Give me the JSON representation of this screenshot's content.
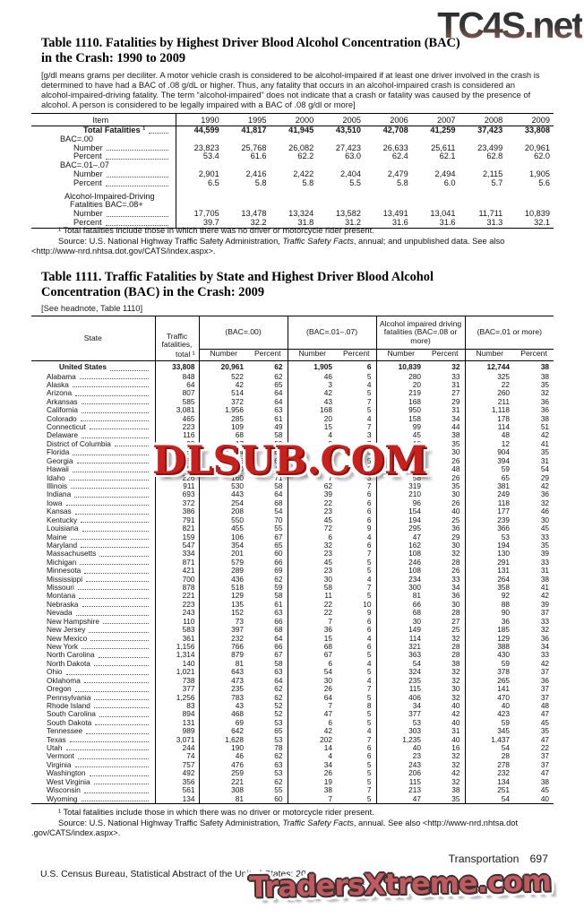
{
  "watermarks": {
    "top_right": "TC4S.net",
    "middle": "DLSUB.COM",
    "bottom": "TradersXtreme.com",
    "middle_color": "#c8201d",
    "bottom_color": "#c2595f"
  },
  "table_1110": {
    "title_line1": "Table 1110. Fatalities by Highest Driver Blood Alcohol Concentration (BAC)",
    "title_line2": "in the Crash: 1990 to 2009",
    "headnote": "[g/dl means grams per deciliter. A motor vehicle crash is considered to be alcohol-impaired if at least one driver involved in the crash is determined to have had a BAC of .08 g/dL or higher. Thus, any fatality that occurs in an alcohol-impaired crash is considered an alcohol-impaired-driving fatality. The term “alcohol-impaired” does not indicate that a crash or fatality was caused by the presence of alcohol. A person is considered to be legally impaired with a BAC of .08 g/dl or more]",
    "columns": [
      "Item",
      "1990",
      "1995",
      "2000",
      "2005",
      "2006",
      "2007",
      "2008",
      "2009"
    ],
    "rows": [
      {
        "label": "Total Fatalities ¹",
        "level": "total",
        "bold": true,
        "leader": true,
        "values": [
          "44,599",
          "41,817",
          "41,945",
          "43,510",
          "42,708",
          "41,259",
          "37,423",
          "33,808"
        ]
      },
      {
        "label": "BAC=.00",
        "level": "group"
      },
      {
        "label": "Number",
        "level": "item",
        "leader": true,
        "values": [
          "23,823",
          "25,768",
          "26,082",
          "27,423",
          "26,633",
          "25,611",
          "23,499",
          "20,961"
        ]
      },
      {
        "label": "Percent",
        "level": "item",
        "leader": true,
        "values": [
          "53.4",
          "61.6",
          "62.2",
          "63.0",
          "62.4",
          "62.1",
          "62.8",
          "62.0"
        ]
      },
      {
        "label": "BAC=.01–.07",
        "level": "group"
      },
      {
        "label": "Number",
        "level": "item",
        "leader": true,
        "values": [
          "2,901",
          "2,416",
          "2,422",
          "2,404",
          "2,479",
          "2,494",
          "2,115",
          "1,905"
        ]
      },
      {
        "label": "Percent",
        "level": "item",
        "leader": true,
        "values": [
          "6.5",
          "5.8",
          "5.8",
          "5.5",
          "5.8",
          "6.0",
          "5.7",
          "5.6"
        ]
      },
      {
        "gap": true
      },
      {
        "label": "Alcohol-Impaired-Driving",
        "label2": "Fatalities BAC=.08+",
        "level": "group2"
      },
      {
        "label": "Number",
        "level": "item",
        "leader": true,
        "values": [
          "17,705",
          "13,478",
          "13,324",
          "13,582",
          "13,491",
          "13,041",
          "11,711",
          "10,839"
        ]
      },
      {
        "label": "Percent",
        "level": "item",
        "leader": true,
        "values": [
          "39.7",
          "32.2",
          "31.8",
          "31.2",
          "31.6",
          "31.6",
          "31.3",
          "32.1"
        ]
      }
    ],
    "footnote": "¹ Total fatalities include those in which there was no driver or motorcycle rider present.",
    "source_prefix": "Source: U.S. National Highway Traffic Safety Administration, ",
    "source_italic": "Traffic Safety Facts",
    "source_suffix": ", annual; and unpublished data. See also",
    "source_line2": "<http://www-nrd.nhtsa.dot.gov/CATS/index.aspx>."
  },
  "table_1111": {
    "title_line1": "Table 1111. Traffic Fatalities by State and Highest Driver Blood Alcohol",
    "title_line2": "Concentration (BAC) in the Crash: 2009",
    "headnote": "[See headnote, Table 1110]",
    "stubhead": "State",
    "total_top": "Traffic fatalities,",
    "total_bottom": "total ¹",
    "groups": [
      "(BAC=.00)",
      "(BAC=.01–.07)",
      "Alcohol impaired driving fatalities (BAC=.08 or more)",
      "(BAC=.01 or more)"
    ],
    "sub": [
      "Number",
      "Percent"
    ],
    "rows": [
      {
        "label": "United States",
        "bold": true,
        "values": [
          "33,808",
          "20,961",
          "62",
          "1,905",
          "6",
          "10,839",
          "32",
          "12,744",
          "38"
        ]
      },
      {
        "label": "Alabama",
        "values": [
          "848",
          "522",
          "62",
          "46",
          "5",
          "280",
          "33",
          "325",
          "38"
        ]
      },
      {
        "label": "Alaska",
        "values": [
          "64",
          "42",
          "65",
          "3",
          "4",
          "20",
          "31",
          "22",
          "35"
        ]
      },
      {
        "label": "Arizona",
        "values": [
          "807",
          "514",
          "64",
          "42",
          "5",
          "219",
          "27",
          "260",
          "32"
        ]
      },
      {
        "label": "Arkansas",
        "values": [
          "585",
          "372",
          "64",
          "43",
          "7",
          "168",
          "29",
          "211",
          "36"
        ]
      },
      {
        "label": "California",
        "values": [
          "3,081",
          "1,956",
          "63",
          "168",
          "5",
          "950",
          "31",
          "1,118",
          "36"
        ]
      },
      {
        "label": "Colorado",
        "values": [
          "465",
          "285",
          "61",
          "20",
          "4",
          "158",
          "34",
          "178",
          "38"
        ]
      },
      {
        "label": "Connecticut",
        "values": [
          "223",
          "109",
          "49",
          "15",
          "7",
          "99",
          "44",
          "114",
          "51"
        ]
      },
      {
        "label": "Delaware",
        "values": [
          "116",
          "68",
          "58",
          "4",
          "3",
          "45",
          "38",
          "48",
          "42"
        ]
      },
      {
        "label": "District of Columbia",
        "values": [
          "29",
          "17",
          "59",
          "2",
          "7",
          "10",
          "35",
          "12",
          "41"
        ]
      },
      {
        "label": "Florida",
        "values": [
          "2,558",
          "1,644",
          "64",
          "134",
          "5",
          "770",
          "30",
          "904",
          "35"
        ]
      },
      {
        "label": "Georgia",
        "values": [
          "1,284",
          "886",
          "69",
          "63",
          "5",
          "331",
          "26",
          "394",
          "31"
        ]
      },
      {
        "label": "Hawaii",
        "values": [
          "109",
          "50",
          "46",
          "7",
          "6",
          "52",
          "48",
          "59",
          "54"
        ]
      },
      {
        "label": "Idaho",
        "values": [
          "226",
          "160",
          "71",
          "7",
          "3",
          "58",
          "26",
          "65",
          "29"
        ]
      },
      {
        "label": "Illinois",
        "values": [
          "911",
          "530",
          "58",
          "62",
          "7",
          "319",
          "35",
          "381",
          "42"
        ]
      },
      {
        "label": "Indiana",
        "values": [
          "693",
          "443",
          "64",
          "39",
          "6",
          "210",
          "30",
          "249",
          "36"
        ]
      },
      {
        "label": "Iowa",
        "values": [
          "372",
          "254",
          "68",
          "22",
          "6",
          "96",
          "26",
          "118",
          "32"
        ]
      },
      {
        "label": "Kansas",
        "values": [
          "386",
          "208",
          "54",
          "23",
          "6",
          "154",
          "40",
          "177",
          "46"
        ]
      },
      {
        "label": "Kentucky",
        "values": [
          "791",
          "550",
          "70",
          "45",
          "6",
          "194",
          "25",
          "239",
          "30"
        ]
      },
      {
        "label": "Louisiana",
        "values": [
          "821",
          "455",
          "55",
          "72",
          "9",
          "295",
          "36",
          "366",
          "45"
        ]
      },
      {
        "label": "Maine",
        "values": [
          "159",
          "106",
          "67",
          "6",
          "4",
          "47",
          "29",
          "53",
          "33"
        ]
      },
      {
        "label": "Maryland",
        "values": [
          "547",
          "354",
          "65",
          "32",
          "6",
          "162",
          "30",
          "194",
          "35"
        ]
      },
      {
        "label": "Massachusetts",
        "values": [
          "334",
          "201",
          "60",
          "23",
          "7",
          "108",
          "32",
          "130",
          "39"
        ]
      },
      {
        "label": "Michigan",
        "values": [
          "871",
          "579",
          "66",
          "45",
          "5",
          "246",
          "28",
          "291",
          "33"
        ]
      },
      {
        "label": "Minnesota",
        "values": [
          "421",
          "289",
          "69",
          "23",
          "5",
          "108",
          "26",
          "131",
          "31"
        ]
      },
      {
        "label": "Mississippi",
        "values": [
          "700",
          "436",
          "62",
          "30",
          "4",
          "234",
          "33",
          "264",
          "38"
        ]
      },
      {
        "label": "Missouri",
        "values": [
          "878",
          "518",
          "59",
          "58",
          "7",
          "300",
          "34",
          "358",
          "41"
        ]
      },
      {
        "label": "Montana",
        "values": [
          "221",
          "129",
          "58",
          "11",
          "5",
          "81",
          "36",
          "92",
          "42"
        ]
      },
      {
        "label": "Nebraska",
        "values": [
          "223",
          "135",
          "61",
          "22",
          "10",
          "66",
          "30",
          "88",
          "39"
        ]
      },
      {
        "label": "Nevada",
        "values": [
          "243",
          "152",
          "63",
          "22",
          "9",
          "68",
          "28",
          "90",
          "37"
        ]
      },
      {
        "label": "New Hampshire",
        "values": [
          "110",
          "73",
          "66",
          "7",
          "6",
          "30",
          "27",
          "36",
          "33"
        ]
      },
      {
        "label": "New Jersey",
        "values": [
          "583",
          "397",
          "68",
          "36",
          "6",
          "149",
          "25",
          "185",
          "32"
        ]
      },
      {
        "label": "New Mexico",
        "values": [
          "361",
          "232",
          "64",
          "15",
          "4",
          "114",
          "32",
          "129",
          "36"
        ]
      },
      {
        "label": "New York",
        "values": [
          "1,156",
          "766",
          "66",
          "68",
          "6",
          "321",
          "28",
          "388",
          "34"
        ]
      },
      {
        "label": "North Carolina",
        "values": [
          "1,314",
          "879",
          "67",
          "67",
          "5",
          "363",
          "28",
          "430",
          "33"
        ]
      },
      {
        "label": "North Dakota",
        "values": [
          "140",
          "81",
          "58",
          "6",
          "4",
          "54",
          "38",
          "59",
          "42"
        ]
      },
      {
        "label": "Ohio",
        "values": [
          "1,021",
          "643",
          "63",
          "54",
          "5",
          "324",
          "32",
          "378",
          "37"
        ]
      },
      {
        "label": "Oklahoma",
        "values": [
          "738",
          "473",
          "64",
          "30",
          "4",
          "235",
          "32",
          "265",
          "36"
        ]
      },
      {
        "label": "Oregon",
        "values": [
          "377",
          "235",
          "62",
          "26",
          "7",
          "115",
          "30",
          "141",
          "37"
        ]
      },
      {
        "label": "Pennsylvania",
        "values": [
          "1,256",
          "783",
          "62",
          "64",
          "5",
          "406",
          "32",
          "470",
          "37"
        ]
      },
      {
        "label": "Rhode Island",
        "values": [
          "83",
          "43",
          "52",
          "7",
          "8",
          "34",
          "40",
          "40",
          "48"
        ]
      },
      {
        "label": "South Carolina",
        "values": [
          "894",
          "468",
          "52",
          "47",
          "5",
          "377",
          "42",
          "423",
          "47"
        ]
      },
      {
        "label": "South Dakota",
        "values": [
          "131",
          "69",
          "53",
          "6",
          "5",
          "53",
          "40",
          "59",
          "45"
        ]
      },
      {
        "label": "Tennessee",
        "values": [
          "989",
          "642",
          "65",
          "42",
          "4",
          "303",
          "31",
          "345",
          "35"
        ]
      },
      {
        "label": "Texas",
        "values": [
          "3,071",
          "1,628",
          "53",
          "202",
          "7",
          "1,235",
          "40",
          "1,437",
          "47"
        ]
      },
      {
        "label": "Utah",
        "values": [
          "244",
          "190",
          "78",
          "14",
          "6",
          "40",
          "16",
          "54",
          "22"
        ]
      },
      {
        "label": "Vermont",
        "values": [
          "74",
          "46",
          "62",
          "4",
          "6",
          "23",
          "32",
          "28",
          "37"
        ]
      },
      {
        "label": "Virginia",
        "values": [
          "757",
          "476",
          "63",
          "34",
          "5",
          "243",
          "32",
          "278",
          "37"
        ]
      },
      {
        "label": "Washington",
        "values": [
          "492",
          "259",
          "53",
          "26",
          "5",
          "206",
          "42",
          "232",
          "47"
        ]
      },
      {
        "label": "West Virginia",
        "values": [
          "356",
          "221",
          "62",
          "19",
          "5",
          "115",
          "32",
          "134",
          "38"
        ]
      },
      {
        "label": "Wisconsin",
        "values": [
          "561",
          "308",
          "55",
          "38",
          "7",
          "213",
          "38",
          "251",
          "45"
        ]
      },
      {
        "label": "Wyoming",
        "values": [
          "134",
          "81",
          "60",
          "7",
          "5",
          "47",
          "35",
          "54",
          "40"
        ]
      }
    ],
    "footnote": "¹ Total fatalities include those in which there was no driver or motorcycle rider present.",
    "source_prefix": "Source: U.S. National Highway Traffic Safety Administration, ",
    "source_italic": "Traffic Safety Facts",
    "source_suffix": ", annual. See also <http://www-nrd.nhtsa.dot",
    "source_line2": ".gov/CATS/index.aspx>."
  },
  "footer": {
    "section": "Transportation",
    "page_number": "697",
    "credit": "U.S. Census Bureau, Statistical Abstract of the United States: 2012"
  }
}
